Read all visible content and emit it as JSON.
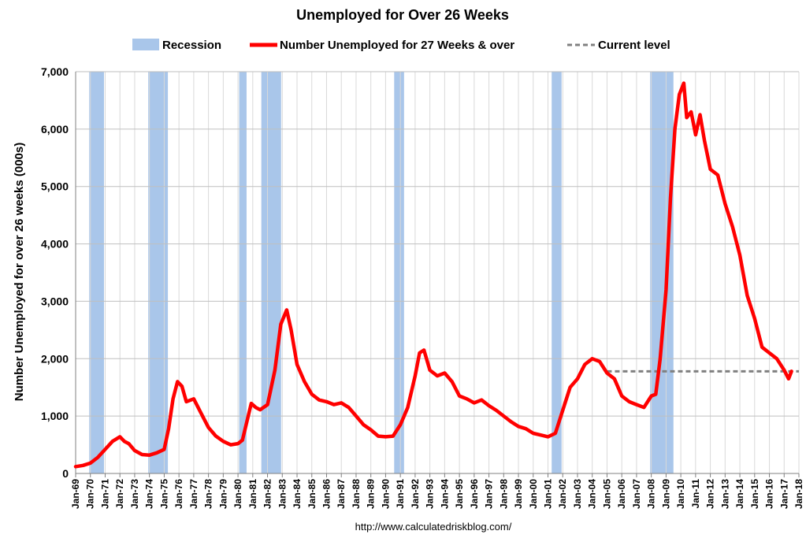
{
  "chart_data": {
    "type": "line",
    "title": "Unemployed for Over 26 Weeks",
    "ylabel": "Number Unemployed for over 26 weeks (000s)",
    "xlabel": "",
    "ylim": [
      0,
      7000
    ],
    "yticks": [
      0,
      1000,
      2000,
      3000,
      4000,
      5000,
      6000,
      7000
    ],
    "ytick_labels": [
      "0",
      "1,000",
      "2,000",
      "3,000",
      "4,000",
      "5,000",
      "6,000",
      "7,000"
    ],
    "xlim": [
      1969.0,
      2018.0
    ],
    "xtick_labels": [
      "Jan-69",
      "Jan-70",
      "Jan-71",
      "Jan-72",
      "Jan-73",
      "Jan-74",
      "Jan-75",
      "Jan-76",
      "Jan-77",
      "Jan-78",
      "Jan-79",
      "Jan-80",
      "Jan-81",
      "Jan-82",
      "Jan-83",
      "Jan-84",
      "Jan-85",
      "Jan-86",
      "Jan-87",
      "Jan-88",
      "Jan-89",
      "Jan-90",
      "Jan-91",
      "Jan-92",
      "Jan-93",
      "Jan-94",
      "Jan-95",
      "Jan-96",
      "Jan-97",
      "Jan-98",
      "Jan-99",
      "Jan-00",
      "Jan-01",
      "Jan-02",
      "Jan-03",
      "Jan-04",
      "Jan-05",
      "Jan-06",
      "Jan-07",
      "Jan-08",
      "Jan-09",
      "Jan-10",
      "Jan-11",
      "Jan-12",
      "Jan-13",
      "Jan-14",
      "Jan-15",
      "Jan-16",
      "Jan-17",
      "Jan-18"
    ],
    "grid": true,
    "legend_position": "top",
    "legend": [
      {
        "label": "Recession",
        "kind": "band",
        "color": "#a9c6ea"
      },
      {
        "label": "Number Unemployed for 27 Weeks & over",
        "kind": "line",
        "color": "#ff0000"
      },
      {
        "label": "Current level",
        "kind": "dashed",
        "color": "#808080"
      }
    ],
    "recessions": [
      [
        1969.92,
        1970.92
      ],
      [
        1973.92,
        1975.25
      ],
      [
        1980.08,
        1980.58
      ],
      [
        1981.58,
        1982.92
      ],
      [
        1990.58,
        1991.25
      ],
      [
        2001.25,
        2001.92
      ],
      [
        2007.92,
        2009.5
      ]
    ],
    "series": [
      {
        "name": "Number Unemployed for 27 Weeks & over",
        "color": "#ff0000",
        "x": [
          1969.0,
          1969.5,
          1970.0,
          1970.5,
          1971.0,
          1971.5,
          1972.0,
          1972.3,
          1972.6,
          1973.0,
          1973.5,
          1974.0,
          1974.5,
          1975.0,
          1975.3,
          1975.6,
          1975.9,
          1976.2,
          1976.5,
          1977.0,
          1977.5,
          1978.0,
          1978.5,
          1979.0,
          1979.5,
          1980.0,
          1980.3,
          1980.6,
          1980.9,
          1981.2,
          1981.5,
          1982.0,
          1982.5,
          1982.9,
          1983.3,
          1983.6,
          1984.0,
          1984.5,
          1985.0,
          1985.5,
          1986.0,
          1986.5,
          1987.0,
          1987.5,
          1988.0,
          1988.5,
          1989.0,
          1989.5,
          1990.0,
          1990.5,
          1991.0,
          1991.5,
          1992.0,
          1992.3,
          1992.6,
          1993.0,
          1993.5,
          1994.0,
          1994.5,
          1995.0,
          1995.5,
          1996.0,
          1996.5,
          1997.0,
          1997.5,
          1998.0,
          1998.5,
          1999.0,
          1999.5,
          2000.0,
          2000.5,
          2001.0,
          2001.5,
          2002.0,
          2002.5,
          2003.0,
          2003.5,
          2004.0,
          2004.5,
          2005.0,
          2005.5,
          2006.0,
          2006.5,
          2007.0,
          2007.5,
          2008.0,
          2008.3,
          2008.6,
          2009.0,
          2009.3,
          2009.6,
          2009.9,
          2010.2,
          2010.4,
          2010.7,
          2011.0,
          2011.3,
          2011.6,
          2012.0,
          2012.5,
          2013.0,
          2013.5,
          2014.0,
          2014.5,
          2015.0,
          2015.5,
          2016.0,
          2016.5,
          2017.0,
          2017.3,
          2017.5
        ],
        "values": [
          120,
          140,
          180,
          280,
          420,
          560,
          640,
          560,
          520,
          400,
          330,
          320,
          360,
          420,
          780,
          1300,
          1600,
          1520,
          1250,
          1300,
          1050,
          800,
          650,
          560,
          500,
          520,
          580,
          900,
          1220,
          1150,
          1110,
          1200,
          1800,
          2600,
          2850,
          2500,
          1900,
          1600,
          1380,
          1280,
          1250,
          1200,
          1230,
          1150,
          1000,
          850,
          760,
          650,
          640,
          650,
          850,
          1150,
          1700,
          2100,
          2150,
          1800,
          1700,
          1750,
          1600,
          1350,
          1300,
          1230,
          1280,
          1180,
          1100,
          1000,
          900,
          820,
          780,
          700,
          670,
          640,
          700,
          1100,
          1500,
          1650,
          1900,
          2000,
          1950,
          1750,
          1650,
          1350,
          1250,
          1200,
          1150,
          1350,
          1380,
          2000,
          3200,
          4800,
          6000,
          6600,
          6800,
          6200,
          6300,
          5900,
          6250,
          5800,
          5300,
          5200,
          4700,
          4300,
          3800,
          3100,
          2700,
          2200,
          2100,
          2000,
          1800,
          1650,
          1780
        ]
      }
    ],
    "current_level": {
      "value": 1780,
      "x_start": 2005.0,
      "x_end": 2018.0
    },
    "source_note": "http://www.calculatedriskblog.com/"
  }
}
